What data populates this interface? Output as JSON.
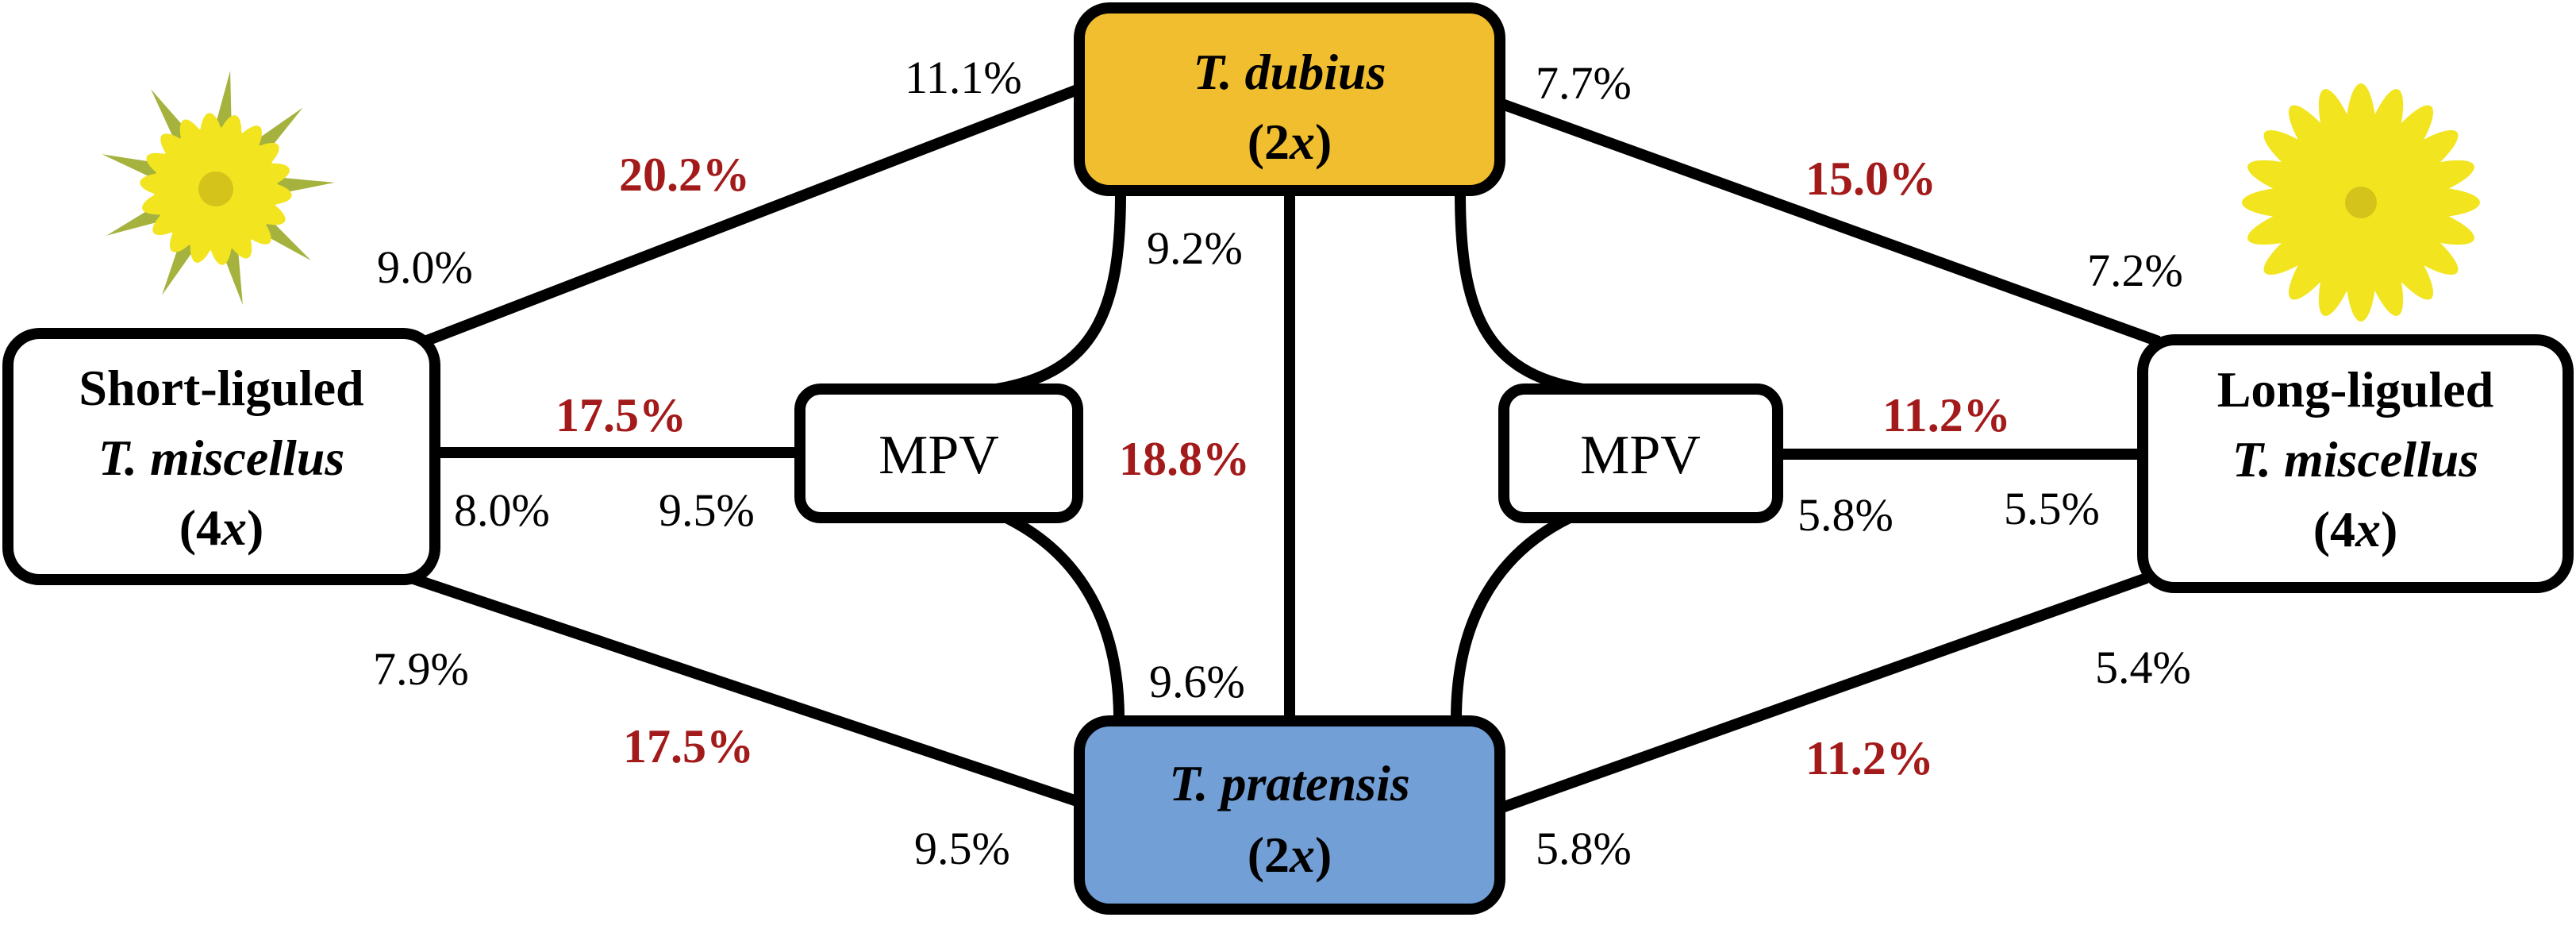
{
  "colors": {
    "dubius_fill": "#F0BE2E",
    "pratensis_fill": "#729FD5",
    "plain_fill": "#FFFFFF",
    "line": "#000000",
    "highlight_text": "#A31A1A",
    "flower_yellow": "#F2E41F",
    "flower_center": "#D4C31A",
    "bract_green": "#A6B23E"
  },
  "nodes": {
    "dubius": {
      "name": "T. dubius",
      "ploidy_open": "(2",
      "ploidy_x": "x",
      "ploidy_close": ")"
    },
    "pratensis": {
      "name": "T. pratensis",
      "ploidy_open": "(2",
      "ploidy_x": "x",
      "ploidy_close": ")"
    },
    "short": {
      "line1": "Short-liguled",
      "line2": "T. miscellus",
      "ploidy_open": "(4",
      "ploidy_x": "x",
      "ploidy_close": ")"
    },
    "long": {
      "line1": "Long-liguled",
      "line2": "T. miscellus",
      "ploidy_open": "(4",
      "ploidy_x": "x",
      "ploidy_close": ")"
    },
    "mpv_left": {
      "label": "MPV"
    },
    "mpv_right": {
      "label": "MPV"
    }
  },
  "labels": {
    "dubius_short_at_dubius": "11.1%",
    "dubius_short_mid": "20.2%",
    "dubius_short_at_short": "9.0%",
    "dubius_long_at_dubius": "7.7%",
    "dubius_long_mid": "15.0%",
    "dubius_long_at_long": "7.2%",
    "dubius_pratensis_at_dubius": "9.2%",
    "dubius_pratensis_mid": "18.8%",
    "dubius_pratensis_at_pratensis": "9.6%",
    "short_mpv_mid": "17.5%",
    "short_mpv_at_short": "8.0%",
    "short_mpv_at_mpv": "9.5%",
    "long_mpv_mid": "11.2%",
    "long_mpv_at_mpv": "5.8%",
    "long_mpv_at_long": "5.5%",
    "short_pratensis_at_short": "7.9%",
    "short_pratensis_mid": "17.5%",
    "short_pratensis_at_pratensis": "9.5%",
    "long_pratensis_at_long": "5.4%",
    "long_pratensis_mid": "11.2%",
    "long_pratensis_at_pratensis": "5.8%"
  },
  "icons": {
    "left_flower": "short-liguled-flower-icon",
    "right_flower": "long-liguled-flower-icon"
  }
}
